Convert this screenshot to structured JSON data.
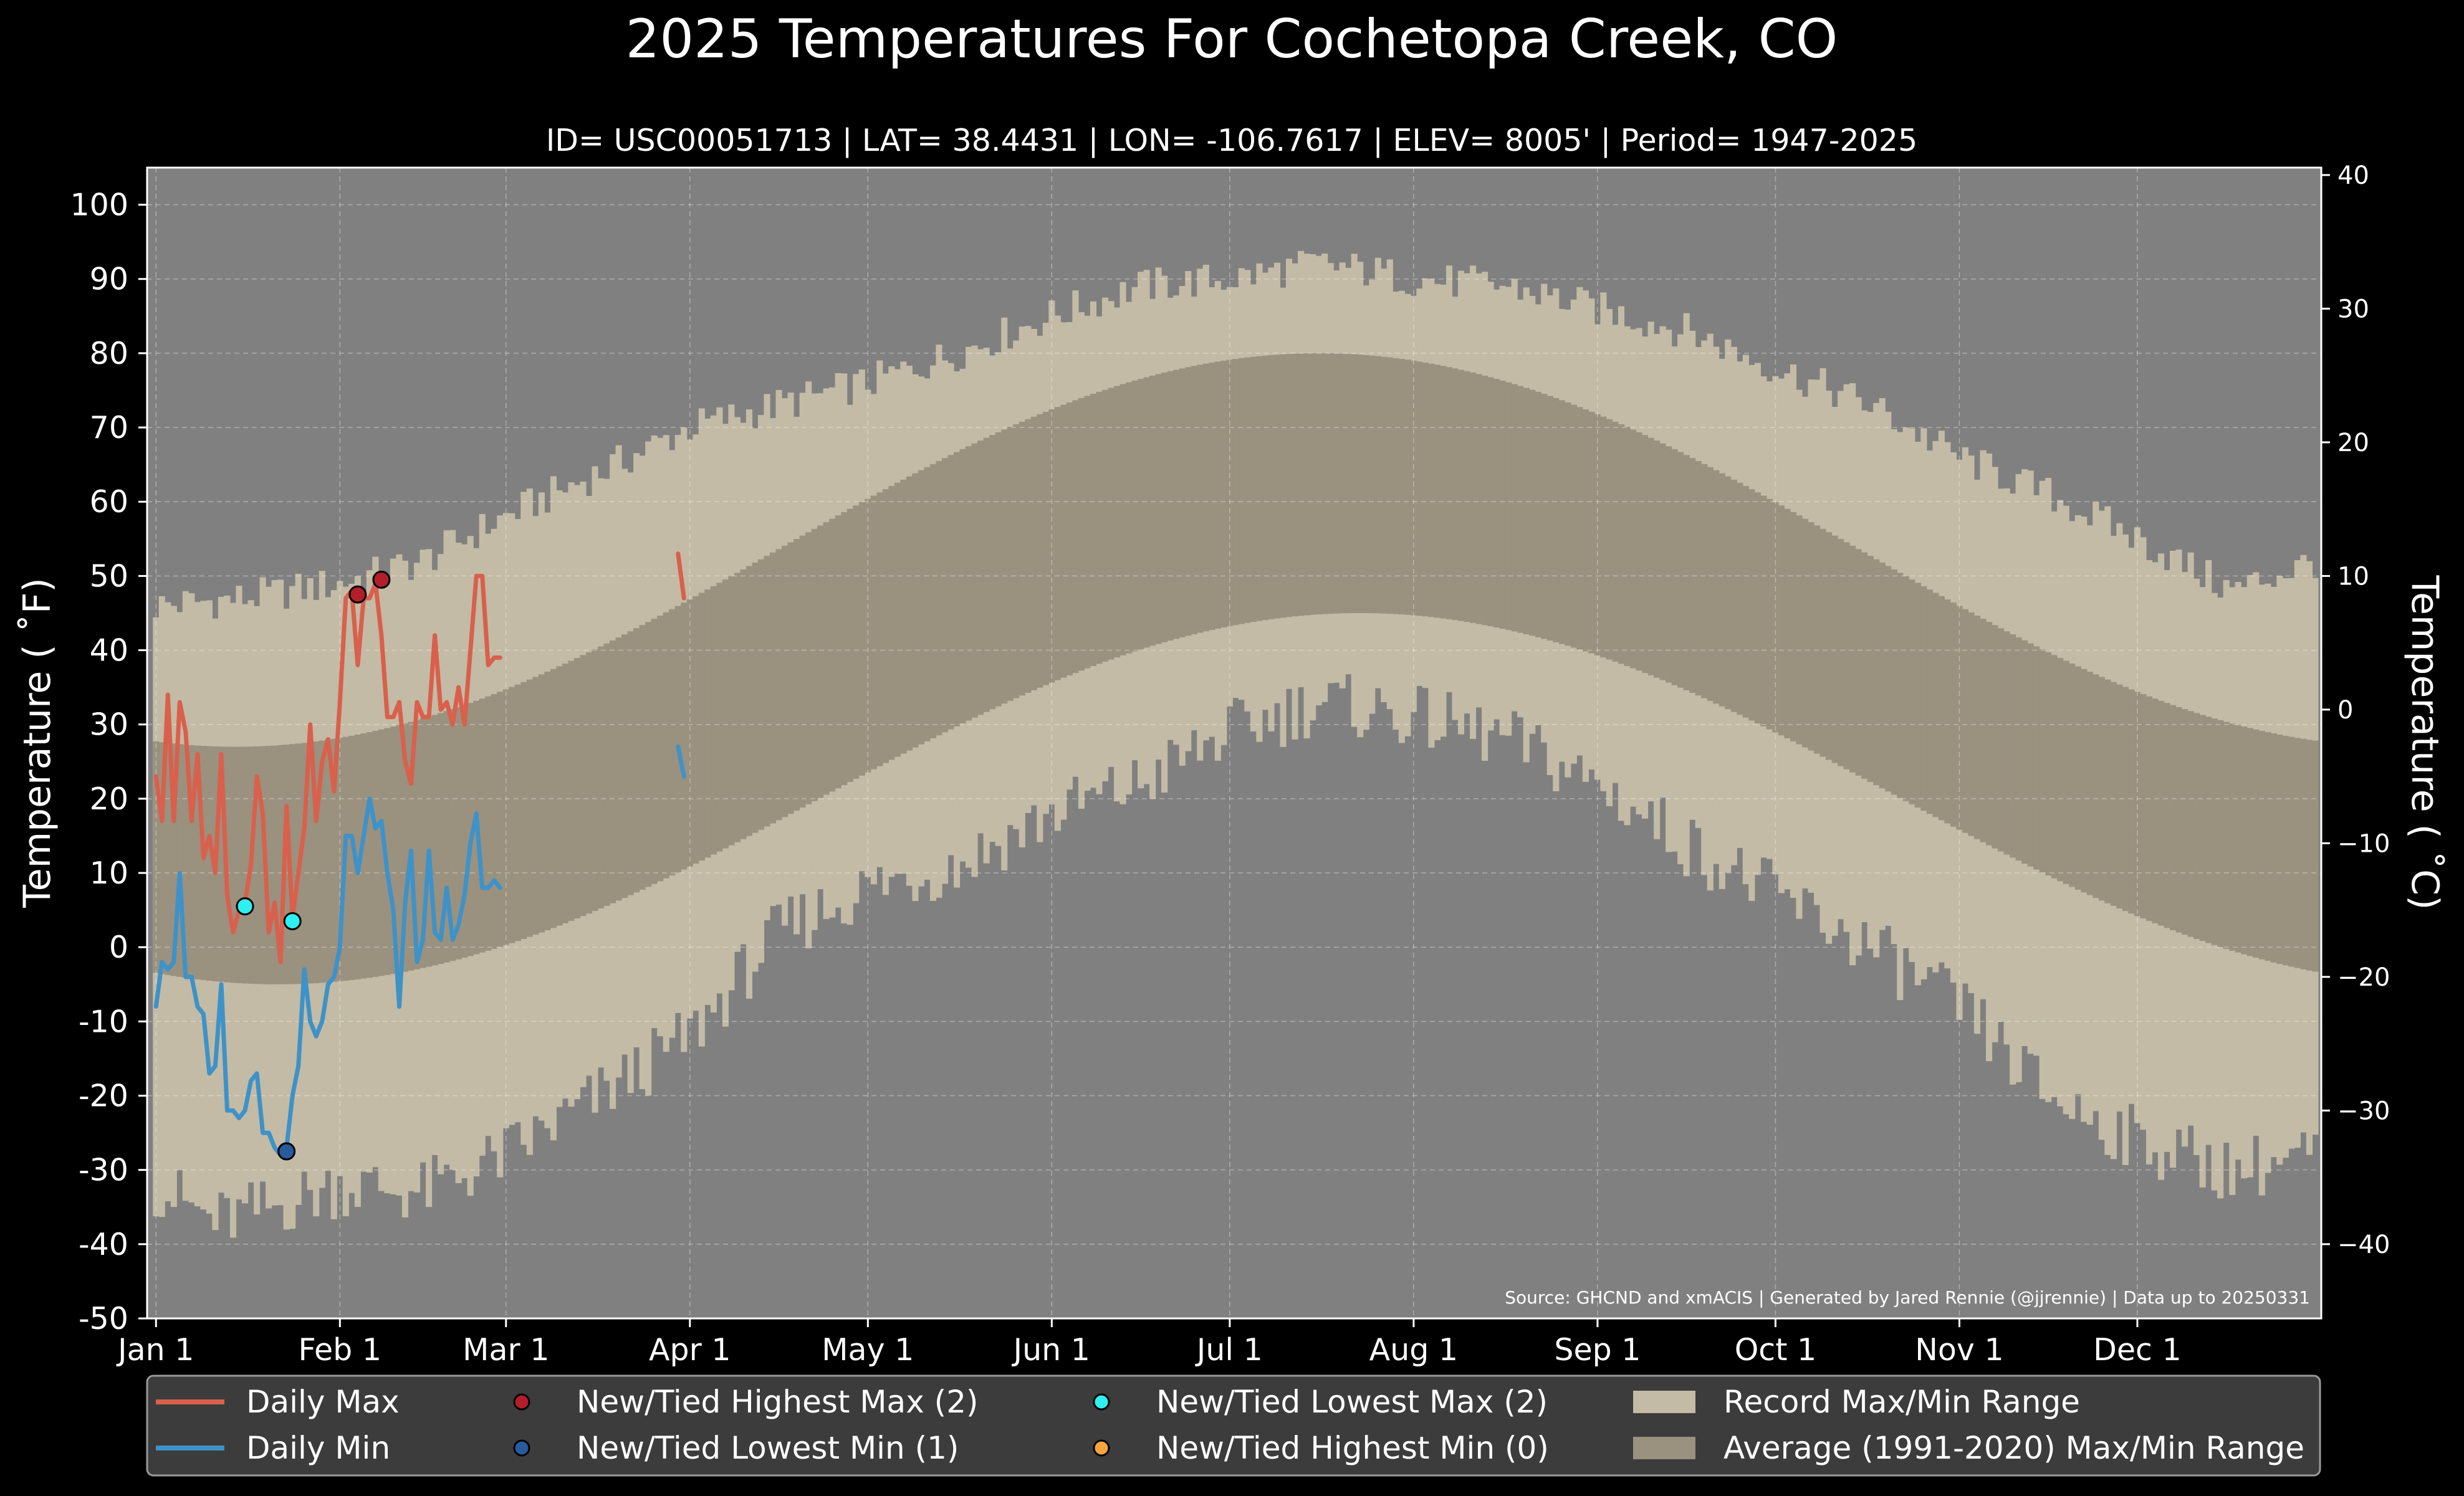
{
  "chart_data": {
    "type": "line",
    "title": "2025 Temperatures For Cochetopa Creek, CO",
    "subtitle": "ID= USC00051713 | LAT= 38.4431 | LON= -106.7617 | ELEV= 8005' | Period= 1947-2025",
    "ylabel": "Temperature ( ˚F)",
    "ylabel_right": "Temperature ( ˚C)",
    "source": "Source: GHCND and xmACIS | Generated by Jared Rennie (@jjrennie) | Data up to 20250331",
    "ylim": [
      -50,
      105
    ],
    "xlim": [
      -1.5,
      365
    ],
    "y_ticks": [
      100,
      90,
      80,
      70,
      60,
      50,
      40,
      30,
      20,
      10,
      0,
      -10,
      -20,
      -30,
      -40,
      -50
    ],
    "y_tick_labels": [
      "100",
      "90",
      "80",
      "70",
      "60",
      "50",
      "40",
      "30",
      "20",
      "10",
      "0",
      "-10",
      "-20",
      "-30",
      "-40",
      "-50"
    ],
    "y2_ticks": [
      40,
      30,
      20,
      10,
      0,
      -10,
      -20,
      -30,
      -40
    ],
    "y2_tick_labels": [
      "40",
      "30",
      "20",
      "10",
      "0",
      "−10",
      "−20",
      "−30",
      "−40"
    ],
    "x_ticks": [
      0,
      31,
      59,
      90,
      120,
      151,
      181,
      212,
      243,
      273,
      304,
      334
    ],
    "x_tick_labels": [
      "Jan 1",
      "Feb 1",
      "Mar 1",
      "Apr 1",
      "May 1",
      "Jun 1",
      "Jul 1",
      "Aug 1",
      "Sep 1",
      "Oct 1",
      "Nov 1",
      "Dec 1"
    ],
    "grid": true,
    "colors": {
      "figure_bg": "#000000",
      "plot_bg": "#808080",
      "record_range": "#c3bba5",
      "normal_range": "#9a917f",
      "daily_max": "#d9604c",
      "daily_min": "#3e92c8",
      "highest_max_marker": "#b21e2a",
      "lowest_min_marker": "#285aa0",
      "lowest_max_marker": "#2ef0f0",
      "highest_min_marker": "#f5a442",
      "legend_bg": "#3c3c3c"
    },
    "record_max_profile": {
      "x": [
        0,
        15,
        31,
        45,
        59,
        75,
        90,
        105,
        120,
        135,
        151,
        166,
        181,
        196,
        205,
        212,
        228,
        243,
        258,
        273,
        289,
        304,
        319,
        334,
        350,
        364
      ],
      "y": [
        46,
        47,
        49,
        52,
        58,
        64,
        70,
        73,
        76,
        80,
        85,
        89,
        90,
        92,
        91,
        90,
        89,
        86,
        83,
        78,
        73,
        66,
        61,
        55,
        48,
        52
      ]
    },
    "record_min_profile": {
      "x": [
        0,
        10,
        20,
        31,
        45,
        59,
        75,
        90,
        105,
        120,
        135,
        151,
        166,
        181,
        196,
        205,
        212,
        228,
        243,
        258,
        273,
        289,
        304,
        319,
        334,
        350,
        364
      ],
      "y": [
        -32,
        -37,
        -35,
        -32,
        -33,
        -28,
        -20,
        -12,
        2,
        8,
        11,
        18,
        22,
        29,
        33,
        32,
        31,
        28,
        22,
        14,
        7,
        0,
        -8,
        -20,
        -26,
        -30,
        -28
      ]
    },
    "normal_max": {
      "min": 27,
      "max": 80,
      "peak_day": 196
    },
    "normal_min": {
      "min": -5,
      "max": 45,
      "peak_day": 203
    },
    "series": [
      {
        "name": "Daily Max",
        "x": [
          0,
          1,
          2,
          3,
          4,
          5,
          6,
          7,
          8,
          9,
          10,
          11,
          12,
          13,
          14,
          15,
          16,
          17,
          18,
          19,
          20,
          21,
          22,
          23,
          24,
          25,
          26,
          27,
          28,
          29,
          30,
          31,
          32,
          33,
          34,
          35,
          36,
          37,
          38,
          39,
          40,
          41,
          42,
          43,
          44,
          45,
          46,
          47,
          48,
          49,
          50,
          51,
          52,
          53,
          54,
          55,
          56,
          57,
          58
        ],
        "y": [
          23,
          17,
          34,
          17,
          33,
          29,
          17,
          26,
          12,
          15,
          10,
          26,
          7,
          2,
          5,
          6,
          11,
          23,
          18,
          2,
          6,
          -2,
          19,
          4,
          10,
          16,
          30,
          17,
          25,
          28,
          21,
          33,
          47,
          48,
          38,
          47,
          47,
          49,
          42,
          31,
          31,
          33,
          25,
          22,
          33,
          31,
          31,
          42,
          32,
          33,
          30,
          35,
          30,
          40,
          50,
          50,
          38,
          39,
          39
        ]
      },
      {
        "name": "Daily Min",
        "x": [
          0,
          1,
          2,
          3,
          4,
          5,
          6,
          7,
          8,
          9,
          10,
          11,
          12,
          13,
          14,
          15,
          16,
          17,
          18,
          19,
          20,
          21,
          22,
          23,
          24,
          25,
          26,
          27,
          28,
          29,
          30,
          31,
          32,
          33,
          34,
          35,
          36,
          37,
          38,
          39,
          40,
          41,
          42,
          43,
          44,
          45,
          46,
          47,
          48,
          49,
          50,
          51,
          52,
          53,
          54,
          55,
          56,
          57,
          58
        ],
        "y": [
          -8,
          -2,
          -3,
          -2,
          10,
          -4,
          -4,
          -8,
          -9,
          -17,
          -16,
          -5,
          -22,
          -22,
          -23,
          -22,
          -18,
          -17,
          -25,
          -25,
          -27,
          -28,
          -27,
          -20,
          -16,
          -3,
          -10,
          -12,
          -10,
          -5,
          -4,
          0,
          15,
          15,
          10,
          15,
          20,
          16,
          17,
          10,
          5,
          -8,
          6,
          13,
          -2,
          1,
          13,
          2,
          1,
          8,
          1,
          3,
          7,
          14,
          18,
          8,
          8,
          9,
          8
        ]
      },
      {
        "name": "Daily Max (late March)",
        "x": [
          88,
          89
        ],
        "y": [
          53,
          47
        ]
      },
      {
        "name": "Daily Min (late March)",
        "x": [
          88,
          89
        ],
        "y": [
          27,
          23
        ]
      }
    ],
    "record_markers": [
      {
        "type": "highest_max",
        "x": [
          34,
          38
        ],
        "y": [
          47.5,
          49.5
        ]
      },
      {
        "type": "lowest_min",
        "x": [
          22
        ],
        "y": [
          -27.5
        ]
      },
      {
        "type": "lowest_max",
        "x": [
          15,
          23
        ],
        "y": [
          5.5,
          3.5
        ]
      }
    ],
    "legend": {
      "placement": "bottom",
      "items": [
        {
          "label": "Daily Max",
          "kind": "line",
          "color": "#d9604c"
        },
        {
          "label": "Daily Min",
          "kind": "line",
          "color": "#3e92c8"
        },
        {
          "label": "New/Tied Highest Max (2)",
          "kind": "marker",
          "color": "#b21e2a"
        },
        {
          "label": "New/Tied Lowest Min (1)",
          "kind": "marker",
          "color": "#285aa0"
        },
        {
          "label": "New/Tied Lowest Max (2)",
          "kind": "marker",
          "color": "#2ef0f0"
        },
        {
          "label": "New/Tied Highest Min (0)",
          "kind": "marker",
          "color": "#f5a442"
        },
        {
          "label": "Record Max/Min Range",
          "kind": "patch",
          "color": "#c3bba5"
        },
        {
          "label": "Average (1991-2020) Max/Min Range",
          "kind": "patch",
          "color": "#9a917f"
        }
      ]
    }
  }
}
